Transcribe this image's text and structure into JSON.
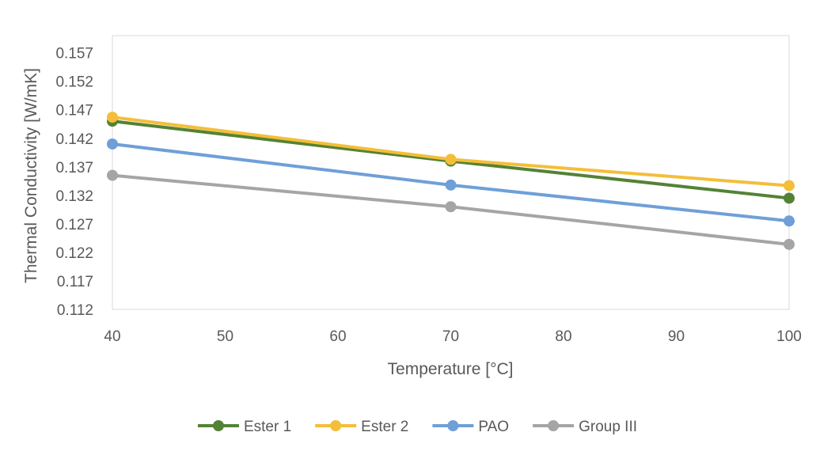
{
  "chart_data": {
    "type": "line",
    "title": "",
    "xlabel": "Temperature [°C]",
    "ylabel": "Thermal Conductivity [W/mK]",
    "xlim": [
      40,
      100
    ],
    "ylim": [
      0.112,
      0.16
    ],
    "xticks": [
      40,
      50,
      60,
      70,
      80,
      90,
      100
    ],
    "yticks": [
      0.112,
      0.117,
      0.122,
      0.127,
      0.132,
      0.137,
      0.142,
      0.147,
      0.152,
      0.157
    ],
    "ytick_labels": [
      "0.112",
      "0.117",
      "0.122",
      "0.127",
      "0.132",
      "0.137",
      "0.142",
      "0.147",
      "0.152",
      "0.157"
    ],
    "grid": false,
    "legend_position": "bottom",
    "x": [
      40,
      70,
      100
    ],
    "series": [
      {
        "name": "Ester 1",
        "color": "#548235",
        "values": [
          0.145,
          0.138,
          0.1315
        ]
      },
      {
        "name": "Ester 2",
        "color": "#F4BE3A",
        "values": [
          0.1457,
          0.1383,
          0.1337
        ]
      },
      {
        "name": "PAO",
        "color": "#6F9FD8",
        "values": [
          0.141,
          0.1338,
          0.1275
        ]
      },
      {
        "name": "Group III",
        "color": "#A5A5A5",
        "values": [
          0.1355,
          0.13,
          0.1234
        ]
      }
    ]
  }
}
